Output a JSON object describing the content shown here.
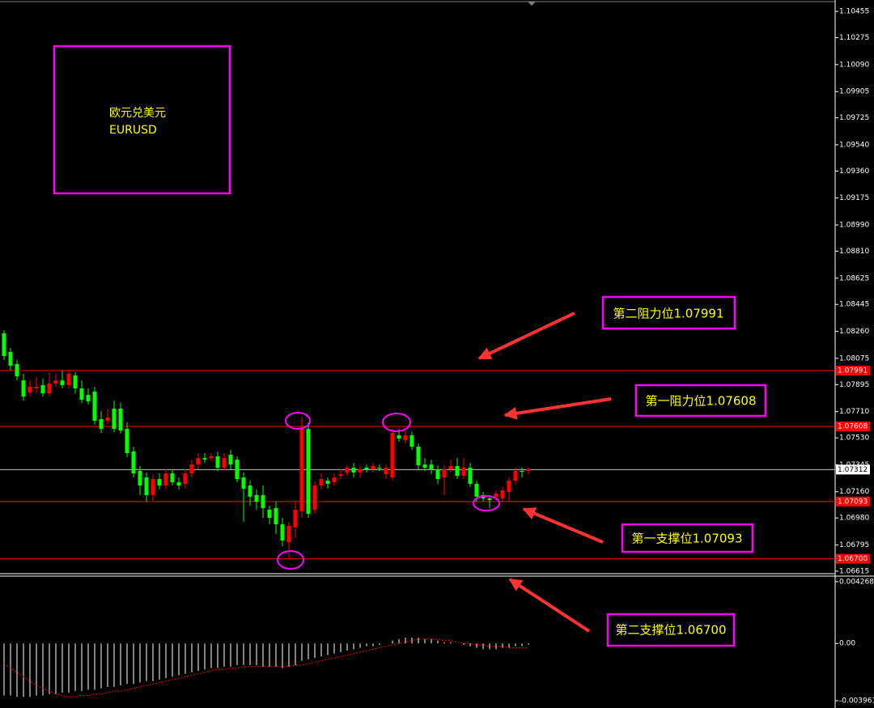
{
  "chart_data": [
    {
      "type": "candlestick",
      "title": "欧元兑美元",
      "subtitle": "EURUSD",
      "up_color": "#ff0000",
      "down_color": "#00ff00",
      "open": [
        1.08246,
        1.08119,
        1.08036,
        1.07924,
        1.07841,
        1.07869,
        1.07891,
        1.07835,
        1.07902,
        1.07924,
        1.07891,
        1.07958,
        1.07869,
        1.07824,
        1.07847,
        1.07658,
        1.07647,
        1.0773,
        1.0773,
        1.07591,
        1.07436,
        1.07303,
        1.07258,
        1.07137,
        1.07247,
        1.07203,
        1.07286,
        1.07225,
        1.07214,
        1.07286,
        1.07347,
        1.07391,
        1.07391,
        1.07403,
        1.07325,
        1.07414,
        1.0738,
        1.07258,
        1.07203,
        1.07137,
        1.07137,
        1.07037,
        1.07048,
        1.06937,
        1.06815,
        1.06915,
        1.07026,
        1.07591,
        1.07037,
        1.07203,
        1.07236,
        1.07225,
        1.07269,
        1.07292,
        1.07325,
        1.07292,
        1.07325,
        1.07314,
        1.07325,
        1.0728,
        1.07258,
        1.07547,
        1.07514,
        1.07547,
        1.07469,
        1.07347,
        1.07347,
        1.07314,
        1.07258,
        1.07314,
        1.07336,
        1.07269,
        1.07325,
        1.07214,
        1.07137,
        1.07114,
        1.07126,
        1.07114,
        1.07159,
        1.07236,
        1.07303,
        1.07303
      ],
      "high": [
        1.08269,
        1.08146,
        1.08063,
        1.07969,
        1.07924,
        1.07947,
        1.07936,
        1.0798,
        1.07969,
        1.07991,
        1.07991,
        1.0798,
        1.07924,
        1.07869,
        1.0788,
        1.07713,
        1.0773,
        1.07786,
        1.07769,
        1.07636,
        1.07469,
        1.07336,
        1.07292,
        1.0728,
        1.07286,
        1.07314,
        1.07314,
        1.07258,
        1.07314,
        1.0738,
        1.07425,
        1.07425,
        1.07425,
        1.07436,
        1.07425,
        1.07447,
        1.07403,
        1.07292,
        1.07236,
        1.07175,
        1.07203,
        1.07065,
        1.07092,
        1.06981,
        1.06953,
        1.07092,
        1.07674,
        1.07636,
        1.07231,
        1.07286,
        1.07258,
        1.07286,
        1.07314,
        1.07342,
        1.07358,
        1.07342,
        1.07347,
        1.07358,
        1.07347,
        1.07347,
        1.07591,
        1.07591,
        1.0758,
        1.07569,
        1.07491,
        1.07391,
        1.0738,
        1.07342,
        1.07342,
        1.0738,
        1.07391,
        1.07391,
        1.07358,
        1.07236,
        1.07159,
        1.07137,
        1.0717,
        1.07192,
        1.07258,
        1.07325,
        1.07325,
        1.07325
      ],
      "low": [
        1.08063,
        1.07991,
        1.07924,
        1.07786,
        1.07813,
        1.07835,
        1.07813,
        1.07813,
        1.0788,
        1.07869,
        1.07869,
        1.07835,
        1.07769,
        1.07758,
        1.07619,
        1.07564,
        1.07625,
        1.07569,
        1.07558,
        1.07397,
        1.07258,
        1.07137,
        1.07092,
        1.07092,
        1.07175,
        1.07175,
        1.07203,
        1.07175,
        1.07181,
        1.07258,
        1.07314,
        1.07358,
        1.07369,
        1.07303,
        1.07303,
        1.07314,
        1.07225,
        1.06953,
        1.07065,
        1.07037,
        1.06981,
        1.06937,
        1.0687,
        1.06787,
        1.067,
        1.06843,
        1.06981,
        1.06981,
        1.07009,
        1.07175,
        1.07181,
        1.07203,
        1.07247,
        1.07269,
        1.07258,
        1.07258,
        1.07292,
        1.07292,
        1.07303,
        1.07247,
        1.07236,
        1.07502,
        1.07491,
        1.07447,
        1.07314,
        1.07303,
        1.0728,
        1.07214,
        1.07137,
        1.07292,
        1.07247,
        1.07247,
        1.07192,
        1.07092,
        1.07092,
        1.07048,
        1.07103,
        1.07092,
        1.07092,
        1.07214,
        1.07258,
        1.0728
      ],
      "close": [
        1.08091,
        1.08025,
        1.07952,
        1.07813,
        1.0788,
        1.0788,
        1.07835,
        1.07902,
        1.07924,
        1.07891,
        1.07969,
        1.07869,
        1.07791,
        1.0778,
        1.07647,
        1.07591,
        1.07669,
        1.07591,
        1.0758,
        1.07425,
        1.07286,
        1.07203,
        1.07137,
        1.07247,
        1.07203,
        1.07286,
        1.07225,
        1.07203,
        1.07286,
        1.07347,
        1.07391,
        1.0738,
        1.07403,
        1.07325,
        1.07391,
        1.07347,
        1.07247,
        1.07181,
        1.07126,
        1.07092,
        1.07048,
        1.06981,
        1.06937,
        1.06826,
        1.06926,
        1.07037,
        1.07602,
        1.07009,
        1.07203,
        1.07247,
        1.07214,
        1.07258,
        1.0728,
        1.07325,
        1.07292,
        1.07314,
        1.07314,
        1.07336,
        1.07325,
        1.07325,
        1.07564,
        1.07525,
        1.07547,
        1.07469,
        1.07342,
        1.07325,
        1.07314,
        1.07247,
        1.07314,
        1.07336,
        1.07269,
        1.07325,
        1.07214,
        1.07126,
        1.07114,
        1.07103,
        1.07148,
        1.0717,
        1.07236,
        1.07303,
        1.07303,
        1.07314
      ],
      "ylim": [
        1.06598,
        1.10522
      ],
      "yticks": [
        1.10455,
        1.10275,
        {
          "value": 1.1009,
          "label": "1.10090"
        },
        1.09905,
        1.09725,
        {
          "value": 1.0954,
          "label": "1.09540"
        },
        {
          "value": 1.0936,
          "label": "1.09360"
        },
        1.09175,
        {
          "value": 1.0899,
          "label": "1.08990"
        },
        {
          "value": 1.0881,
          "label": "1.08810"
        },
        1.08625,
        1.08445,
        {
          "value": 1.0826,
          "label": "1.08260"
        },
        1.08075,
        1.07895,
        {
          "value": 1.0771,
          "label": "1.07710"
        },
        {
          "value": 1.0753,
          "label": "1.07530"
        },
        1.07345,
        {
          "value": 1.0716,
          "label": "1.07160"
        },
        {
          "value": 1.0698,
          "label": "1.06980"
        },
        1.06795,
        1.06615
      ],
      "levels": [
        1.07991,
        1.07608,
        1.07093,
        {
          "value": 1.067,
          "label": "1.06700"
        }
      ],
      "level_color": "#ff0000",
      "last_price": 1.07312,
      "annotations": [
        "第二阻力位1.07991",
        "第一阻力位1.07608",
        "第一支撑位1.07093",
        "第二支撑位1.06700"
      ]
    },
    {
      "type": "macd",
      "ylim": [
        -0.00435,
        0.0046
      ],
      "yticks": [
        0.004268,
        {
          "value": 0,
          "label": "0.00"
        },
        -0.003961
      ],
      "series": [
        {
          "type": "bar",
          "color": "#ffffff",
          "values": [
            -0.0036,
            -0.0036,
            -0.0037,
            -0.0037,
            -0.0037,
            -0.0036,
            -0.0036,
            -0.0035,
            -0.0035,
            -0.0034,
            -0.0034,
            -0.0033,
            -0.0033,
            -0.0032,
            -0.0032,
            -0.0031,
            -0.003,
            -0.003,
            -0.0029,
            -0.0028,
            -0.0028,
            -0.0027,
            -0.0026,
            -0.0026,
            -0.0025,
            -0.0024,
            -0.0023,
            -0.0022,
            -0.0021,
            -0.002,
            -0.0019,
            -0.0018,
            -0.0017,
            -0.0017,
            -0.0016,
            -0.0016,
            -0.0015,
            -0.0015,
            -0.0015,
            -0.0015,
            -0.0016,
            -0.0016,
            -0.0016,
            -0.0017,
            -0.0016,
            -0.0015,
            -0.0012,
            -0.0011,
            -0.001,
            -0.0009,
            -0.0008,
            -0.0007,
            -0.0006,
            -0.0005,
            -0.0004,
            -0.0003,
            -0.0002,
            -0.0002,
            -0.0001,
            0,
            0.0002,
            0.0003,
            0.0004,
            0.0004,
            0.0004,
            0.0003,
            0.0003,
            0.0002,
            0.0001,
            0.0001,
            0,
            -0.0001,
            -0.0002,
            -0.0003,
            -0.0004,
            -0.0004,
            -0.0004,
            -0.0003,
            -0.0003,
            -0.0002,
            -0.0002,
            -0.0001
          ]
        },
        {
          "type": "line",
          "color": "#ff0000",
          "values": [
            -0.0014,
            -0.0017,
            -0.002,
            -0.0023,
            -0.0026,
            -0.0029,
            -0.0031,
            -0.0033,
            -0.0035,
            -0.0036,
            -0.0037,
            -0.0037,
            -0.0036,
            -0.0036,
            -0.0035,
            -0.0035,
            -0.0034,
            -0.0033,
            -0.0033,
            -0.0032,
            -0.0031,
            -0.003,
            -0.0029,
            -0.0028,
            -0.0027,
            -0.0026,
            -0.0025,
            -0.0024,
            -0.0023,
            -0.0022,
            -0.0021,
            -0.002,
            -0.0019,
            -0.0018,
            -0.0018,
            -0.0017,
            -0.0017,
            -0.0016,
            -0.0016,
            -0.0016,
            -0.0016,
            -0.0016,
            -0.0016,
            -0.0016,
            -0.0016,
            -0.0015,
            -0.0015,
            -0.0014,
            -0.0013,
            -0.0012,
            -0.0011,
            -0.001,
            -0.0009,
            -0.0008,
            -0.0007,
            -0.0006,
            -0.0005,
            -0.0004,
            -0.0003,
            -0.0002,
            -0.0001,
            0,
            0.0001,
            0.0002,
            0.0003,
            0.0003,
            0.0003,
            0.0003,
            0.0002,
            0.0002,
            0.0001,
            0,
            0,
            -0.0001,
            -0.0001,
            -0.0002,
            -0.0002,
            -0.0002,
            -0.0003,
            -0.0003,
            -0.0003,
            -0.0003
          ]
        }
      ]
    }
  ]
}
